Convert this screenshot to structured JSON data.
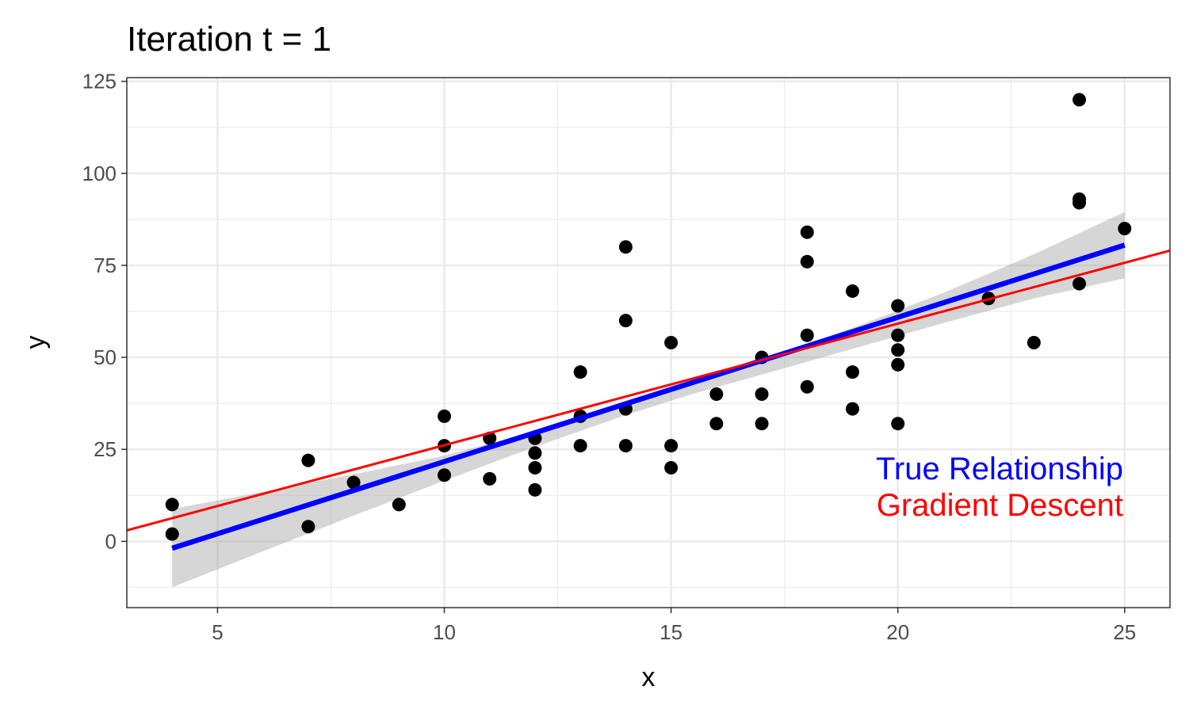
{
  "chart_data": {
    "type": "scatter",
    "title": "Iteration t = 1",
    "xlabel": "x",
    "ylabel": "y",
    "xlim": [
      3,
      26
    ],
    "ylim": [
      -18,
      126
    ],
    "x_ticks": [
      5,
      10,
      15,
      20,
      25
    ],
    "y_ticks": [
      0,
      25,
      50,
      75,
      100,
      125
    ],
    "x_minor_ticks": [
      7.5,
      12.5,
      17.5,
      22.5
    ],
    "y_minor_ticks": [
      -12.5,
      12.5,
      37.5,
      62.5,
      87.5,
      112.5
    ],
    "grid": true,
    "points": [
      {
        "x": 4,
        "y": 2
      },
      {
        "x": 4,
        "y": 10
      },
      {
        "x": 7,
        "y": 4
      },
      {
        "x": 7,
        "y": 22
      },
      {
        "x": 8,
        "y": 16
      },
      {
        "x": 9,
        "y": 10
      },
      {
        "x": 10,
        "y": 18
      },
      {
        "x": 10,
        "y": 26
      },
      {
        "x": 10,
        "y": 34
      },
      {
        "x": 11,
        "y": 17
      },
      {
        "x": 11,
        "y": 28
      },
      {
        "x": 12,
        "y": 14
      },
      {
        "x": 12,
        "y": 20
      },
      {
        "x": 12,
        "y": 24
      },
      {
        "x": 12,
        "y": 28
      },
      {
        "x": 13,
        "y": 26
      },
      {
        "x": 13,
        "y": 34
      },
      {
        "x": 13,
        "y": 46
      },
      {
        "x": 14,
        "y": 26
      },
      {
        "x": 14,
        "y": 36
      },
      {
        "x": 14,
        "y": 60
      },
      {
        "x": 14,
        "y": 80
      },
      {
        "x": 15,
        "y": 20
      },
      {
        "x": 15,
        "y": 26
      },
      {
        "x": 15,
        "y": 54
      },
      {
        "x": 16,
        "y": 32
      },
      {
        "x": 16,
        "y": 40
      },
      {
        "x": 17,
        "y": 32
      },
      {
        "x": 17,
        "y": 40
      },
      {
        "x": 17,
        "y": 50
      },
      {
        "x": 18,
        "y": 42
      },
      {
        "x": 18,
        "y": 56
      },
      {
        "x": 18,
        "y": 76
      },
      {
        "x": 18,
        "y": 84
      },
      {
        "x": 19,
        "y": 36
      },
      {
        "x": 19,
        "y": 46
      },
      {
        "x": 19,
        "y": 68
      },
      {
        "x": 20,
        "y": 32
      },
      {
        "x": 20,
        "y": 48
      },
      {
        "x": 20,
        "y": 52
      },
      {
        "x": 20,
        "y": 56
      },
      {
        "x": 20,
        "y": 64
      },
      {
        "x": 22,
        "y": 66
      },
      {
        "x": 23,
        "y": 54
      },
      {
        "x": 24,
        "y": 70
      },
      {
        "x": 24,
        "y": 92
      },
      {
        "x": 24,
        "y": 93
      },
      {
        "x": 24,
        "y": 120
      },
      {
        "x": 25,
        "y": 85
      }
    ],
    "true_line": {
      "label": "True Relationship",
      "color": "#0000ff",
      "x": [
        4,
        25
      ],
      "y": [
        -1.85,
        80.5
      ],
      "confidence_band": {
        "x": [
          4,
          6,
          8,
          10,
          12,
          14,
          15.4,
          17,
          19,
          21,
          23,
          25
        ],
        "lower": [
          -12.5,
          -2.7,
          7.0,
          16.5,
          25.7,
          34.3,
          39.8,
          45.3,
          52.3,
          59.3,
          66.0,
          71.5
        ],
        "upper": [
          8.8,
          13.5,
          18.2,
          23.3,
          30.0,
          38.3,
          43.8,
          49.5,
          58.0,
          67.5,
          78.0,
          89.5
        ]
      }
    },
    "gd_line": {
      "label": "Gradient Descent",
      "color": "#ff0000",
      "x": [
        3,
        26
      ],
      "y": [
        3.0,
        79.0
      ]
    },
    "annotations": [
      {
        "text": "True Relationship",
        "color": "#0000ff"
      },
      {
        "text": "Gradient Descent",
        "color": "#ff0000"
      }
    ],
    "band_color": "#d3d3d3",
    "point_color": "#000000"
  }
}
